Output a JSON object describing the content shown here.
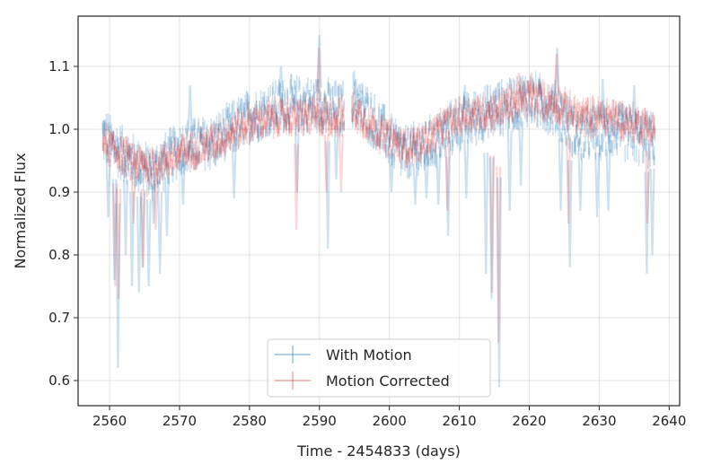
{
  "chart_data": {
    "type": "scatter",
    "title": "",
    "xlabel": "Time - 2454833 (days)",
    "ylabel": "Normalized Flux",
    "xlim": [
      2555.5,
      2641.5
    ],
    "ylim": [
      0.56,
      1.18
    ],
    "xticks": [
      2560,
      2570,
      2580,
      2590,
      2600,
      2610,
      2620,
      2630,
      2640
    ],
    "xtick_labels": [
      "2560",
      "2570",
      "2580",
      "2590",
      "2600",
      "2610",
      "2620",
      "2630",
      "2640"
    ],
    "yticks": [
      0.6,
      0.7,
      0.8,
      0.9,
      1.0,
      1.1
    ],
    "ytick_labels": [
      "0.6",
      "0.7",
      "0.8",
      "0.9",
      "1.0",
      "1.1"
    ],
    "grid": true,
    "legend_position": "bottom-center",
    "series": [
      {
        "name": "With Motion",
        "color": "#1f77b4",
        "alpha": 0.22,
        "x_range": [
          2559,
          2638
        ],
        "gaps": [
          [
            2593.6,
            2594.6
          ]
        ],
        "baseline": [
          {
            "x": 2559,
            "y": 0.99
          },
          {
            "x": 2563,
            "y": 0.95
          },
          {
            "x": 2566,
            "y": 0.93
          },
          {
            "x": 2570,
            "y": 0.97
          },
          {
            "x": 2575,
            "y": 0.98
          },
          {
            "x": 2580,
            "y": 1.02
          },
          {
            "x": 2585,
            "y": 1.04
          },
          {
            "x": 2590,
            "y": 1.04
          },
          {
            "x": 2593,
            "y": 1.03
          },
          {
            "x": 2595,
            "y": 1.05
          },
          {
            "x": 2598,
            "y": 1.01
          },
          {
            "x": 2602,
            "y": 0.96
          },
          {
            "x": 2605,
            "y": 0.97
          },
          {
            "x": 2610,
            "y": 1.01
          },
          {
            "x": 2615,
            "y": 1.03
          },
          {
            "x": 2620,
            "y": 1.05
          },
          {
            "x": 2624,
            "y": 1.03
          },
          {
            "x": 2627,
            "y": 0.99
          },
          {
            "x": 2632,
            "y": 1.0
          },
          {
            "x": 2638,
            "y": 0.98
          }
        ],
        "scatter_amplitude": 0.035,
        "dips": [
          {
            "x": 2559.8,
            "y": 0.86
          },
          {
            "x": 2560.7,
            "y": 0.76
          },
          {
            "x": 2561.2,
            "y": 0.62
          },
          {
            "x": 2562.3,
            "y": 0.8
          },
          {
            "x": 2563.2,
            "y": 0.75
          },
          {
            "x": 2564.2,
            "y": 0.74
          },
          {
            "x": 2564.7,
            "y": 0.78
          },
          {
            "x": 2565.6,
            "y": 0.75
          },
          {
            "x": 2566.3,
            "y": 0.85
          },
          {
            "x": 2567.2,
            "y": 0.77
          },
          {
            "x": 2568.2,
            "y": 0.83
          },
          {
            "x": 2570.5,
            "y": 0.88
          },
          {
            "x": 2577.8,
            "y": 0.89
          },
          {
            "x": 2586.8,
            "y": 0.9
          },
          {
            "x": 2591.2,
            "y": 0.81
          },
          {
            "x": 2592.4,
            "y": 0.92
          },
          {
            "x": 2600.3,
            "y": 0.9
          },
          {
            "x": 2603.7,
            "y": 0.88
          },
          {
            "x": 2605.3,
            "y": 0.89
          },
          {
            "x": 2607.0,
            "y": 0.88
          },
          {
            "x": 2608.4,
            "y": 0.83
          },
          {
            "x": 2611.0,
            "y": 0.89
          },
          {
            "x": 2613.8,
            "y": 0.77
          },
          {
            "x": 2614.6,
            "y": 0.73
          },
          {
            "x": 2615.7,
            "y": 0.59
          },
          {
            "x": 2617.2,
            "y": 0.87
          },
          {
            "x": 2618.8,
            "y": 0.91
          },
          {
            "x": 2624.5,
            "y": 0.87
          },
          {
            "x": 2625.8,
            "y": 0.78
          },
          {
            "x": 2627.3,
            "y": 0.87
          },
          {
            "x": 2629.7,
            "y": 0.86
          },
          {
            "x": 2631.3,
            "y": 0.87
          },
          {
            "x": 2636.8,
            "y": 0.77
          },
          {
            "x": 2637.6,
            "y": 0.8
          }
        ],
        "spikes": [
          {
            "x": 2571.5,
            "y": 1.07
          },
          {
            "x": 2584.5,
            "y": 1.1
          },
          {
            "x": 2590.0,
            "y": 1.15
          },
          {
            "x": 2595.2,
            "y": 1.08
          },
          {
            "x": 2610.8,
            "y": 1.07
          },
          {
            "x": 2621.5,
            "y": 1.08
          },
          {
            "x": 2624.0,
            "y": 1.13
          },
          {
            "x": 2630.5,
            "y": 1.08
          },
          {
            "x": 2635.0,
            "y": 1.07
          }
        ]
      },
      {
        "name": "Motion Corrected",
        "color": "#d62728",
        "alpha": 0.18,
        "x_range": [
          2559,
          2638
        ],
        "gaps": [
          [
            2593.6,
            2594.6
          ]
        ],
        "baseline": [
          {
            "x": 2559,
            "y": 0.98
          },
          {
            "x": 2563,
            "y": 0.95
          },
          {
            "x": 2566,
            "y": 0.94
          },
          {
            "x": 2570,
            "y": 0.96
          },
          {
            "x": 2575,
            "y": 0.98
          },
          {
            "x": 2580,
            "y": 1.01
          },
          {
            "x": 2585,
            "y": 1.02
          },
          {
            "x": 2590,
            "y": 1.02
          },
          {
            "x": 2593,
            "y": 1.02
          },
          {
            "x": 2595,
            "y": 1.03
          },
          {
            "x": 2598,
            "y": 1.0
          },
          {
            "x": 2602,
            "y": 0.97
          },
          {
            "x": 2605,
            "y": 0.98
          },
          {
            "x": 2610,
            "y": 1.02
          },
          {
            "x": 2615,
            "y": 1.03
          },
          {
            "x": 2620,
            "y": 1.05
          },
          {
            "x": 2624,
            "y": 1.04
          },
          {
            "x": 2627,
            "y": 1.02
          },
          {
            "x": 2632,
            "y": 1.02
          },
          {
            "x": 2638,
            "y": 1.0
          }
        ],
        "scatter_amplitude": 0.022,
        "dips": [
          {
            "x": 2560.8,
            "y": 0.75
          },
          {
            "x": 2561.3,
            "y": 0.73
          },
          {
            "x": 2563.4,
            "y": 0.85
          },
          {
            "x": 2564.8,
            "y": 0.78
          },
          {
            "x": 2566.6,
            "y": 0.84
          },
          {
            "x": 2586.7,
            "y": 0.84
          },
          {
            "x": 2591.0,
            "y": 0.9
          },
          {
            "x": 2593.1,
            "y": 0.9
          },
          {
            "x": 2608.3,
            "y": 0.87
          },
          {
            "x": 2614.7,
            "y": 0.74
          },
          {
            "x": 2615.6,
            "y": 0.66
          },
          {
            "x": 2625.6,
            "y": 0.85
          },
          {
            "x": 2636.9,
            "y": 0.85
          }
        ],
        "spikes": [
          {
            "x": 2589.9,
            "y": 1.13
          },
          {
            "x": 2618.5,
            "y": 1.09
          },
          {
            "x": 2620.3,
            "y": 1.09
          },
          {
            "x": 2623.9,
            "y": 1.12
          }
        ]
      }
    ]
  }
}
